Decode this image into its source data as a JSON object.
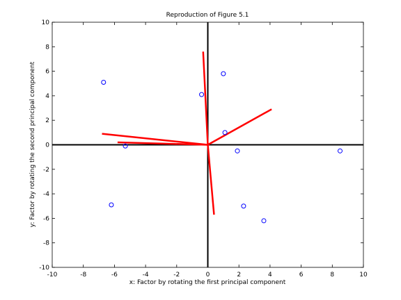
{
  "chart_data": {
    "type": "scatter",
    "title": "Reproduction of Figure 5.1",
    "xlabel": "x: Factor by rotating the first principal component",
    "ylabel": "y: Factor by rotating the second principal component",
    "xlim": [
      -10,
      10
    ],
    "ylim": [
      -10,
      10
    ],
    "xticks": [
      -10,
      -8,
      -6,
      -4,
      -2,
      0,
      2,
      4,
      6,
      8,
      10
    ],
    "yticks": [
      -10,
      -8,
      -6,
      -4,
      -2,
      0,
      2,
      4,
      6,
      8,
      10
    ],
    "grid": false,
    "colors": {
      "points": "#0000ff",
      "vectors": "#ff0000",
      "axes": "#000000"
    },
    "points": [
      {
        "x": -6.7,
        "y": 5.1
      },
      {
        "x": -0.4,
        "y": 4.1
      },
      {
        "x": 1.0,
        "y": 5.8
      },
      {
        "x": 1.1,
        "y": 1.0
      },
      {
        "x": -5.3,
        "y": -0.1
      },
      {
        "x": 1.9,
        "y": -0.5
      },
      {
        "x": 8.5,
        "y": -0.5
      },
      {
        "x": -6.2,
        "y": -4.9
      },
      {
        "x": 2.3,
        "y": -5.0
      },
      {
        "x": 3.6,
        "y": -6.2
      }
    ],
    "vectors": [
      {
        "x": -0.3,
        "y": 7.6
      },
      {
        "x": 4.1,
        "y": 2.9
      },
      {
        "x": -6.8,
        "y": 0.9
      },
      {
        "x": -5.8,
        "y": 0.2
      },
      {
        "x": 0.4,
        "y": -5.7
      }
    ]
  }
}
